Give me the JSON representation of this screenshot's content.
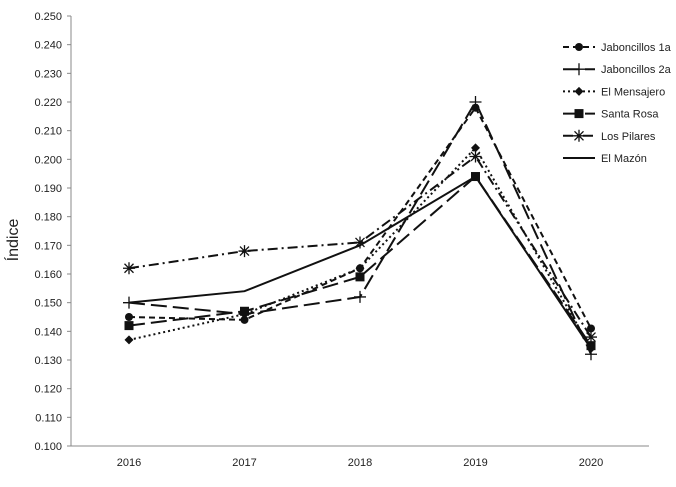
{
  "chart_data": {
    "type": "line",
    "title": "",
    "xlabel": "",
    "ylabel": "Índice",
    "categories": [
      "2016",
      "2017",
      "2018",
      "2019",
      "2020"
    ],
    "ylim": [
      0.1,
      0.25
    ],
    "yticks": [
      "0.100",
      "0.110",
      "0.120",
      "0.130",
      "0.140",
      "0.150",
      "0.160",
      "0.170",
      "0.180",
      "0.190",
      "0.200",
      "0.210",
      "0.220",
      "0.230",
      "0.240",
      "0.250"
    ],
    "grid": false,
    "legend_position": "top-right",
    "series": [
      {
        "name": "Jaboncillos 1a",
        "values": [
          0.145,
          0.144,
          0.162,
          0.218,
          0.141
        ],
        "dash": "short-dash",
        "marker": "circle",
        "color": "#111111"
      },
      {
        "name": "Jaboncillos 2a",
        "values": [
          0.15,
          0.146,
          0.152,
          0.22,
          0.132
        ],
        "dash": "long-dash",
        "marker": "plus",
        "color": "#111111"
      },
      {
        "name": "El Mensajero",
        "values": [
          0.137,
          0.146,
          0.162,
          0.204,
          0.134
        ],
        "dash": "dotted",
        "marker": "diamond",
        "color": "#111111"
      },
      {
        "name": "Santa Rosa",
        "values": [
          0.142,
          0.147,
          0.159,
          0.194,
          0.135
        ],
        "dash": "long-dash",
        "marker": "square",
        "color": "#111111"
      },
      {
        "name": "Los Pilares",
        "values": [
          0.162,
          0.168,
          0.171,
          0.201,
          0.138
        ],
        "dash": "dash-dot",
        "marker": "asterisk",
        "color": "#111111"
      },
      {
        "name": "El Mazón",
        "values": [
          0.15,
          0.154,
          0.17,
          0.194,
          0.134
        ],
        "dash": "solid",
        "marker": "none",
        "color": "#111111"
      }
    ]
  }
}
